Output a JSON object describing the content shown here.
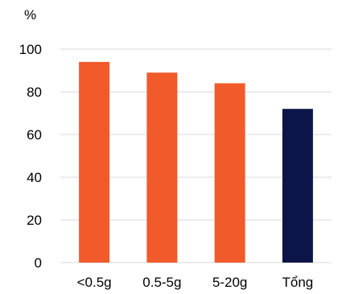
{
  "chart_data": {
    "type": "bar",
    "title": "",
    "xlabel": "",
    "ylabel": "%",
    "categories": [
      "<0.5g",
      "0.5-5g",
      "5-20g",
      "Tổng"
    ],
    "values": [
      94,
      89,
      84,
      72
    ],
    "bar_colors": [
      "#f15a2b",
      "#f15a2b",
      "#f15a2b",
      "#0b1547"
    ],
    "ylim": [
      0,
      100
    ],
    "yticks": [
      0,
      20,
      40,
      60,
      80,
      100
    ],
    "grid": true,
    "legend": "none"
  }
}
